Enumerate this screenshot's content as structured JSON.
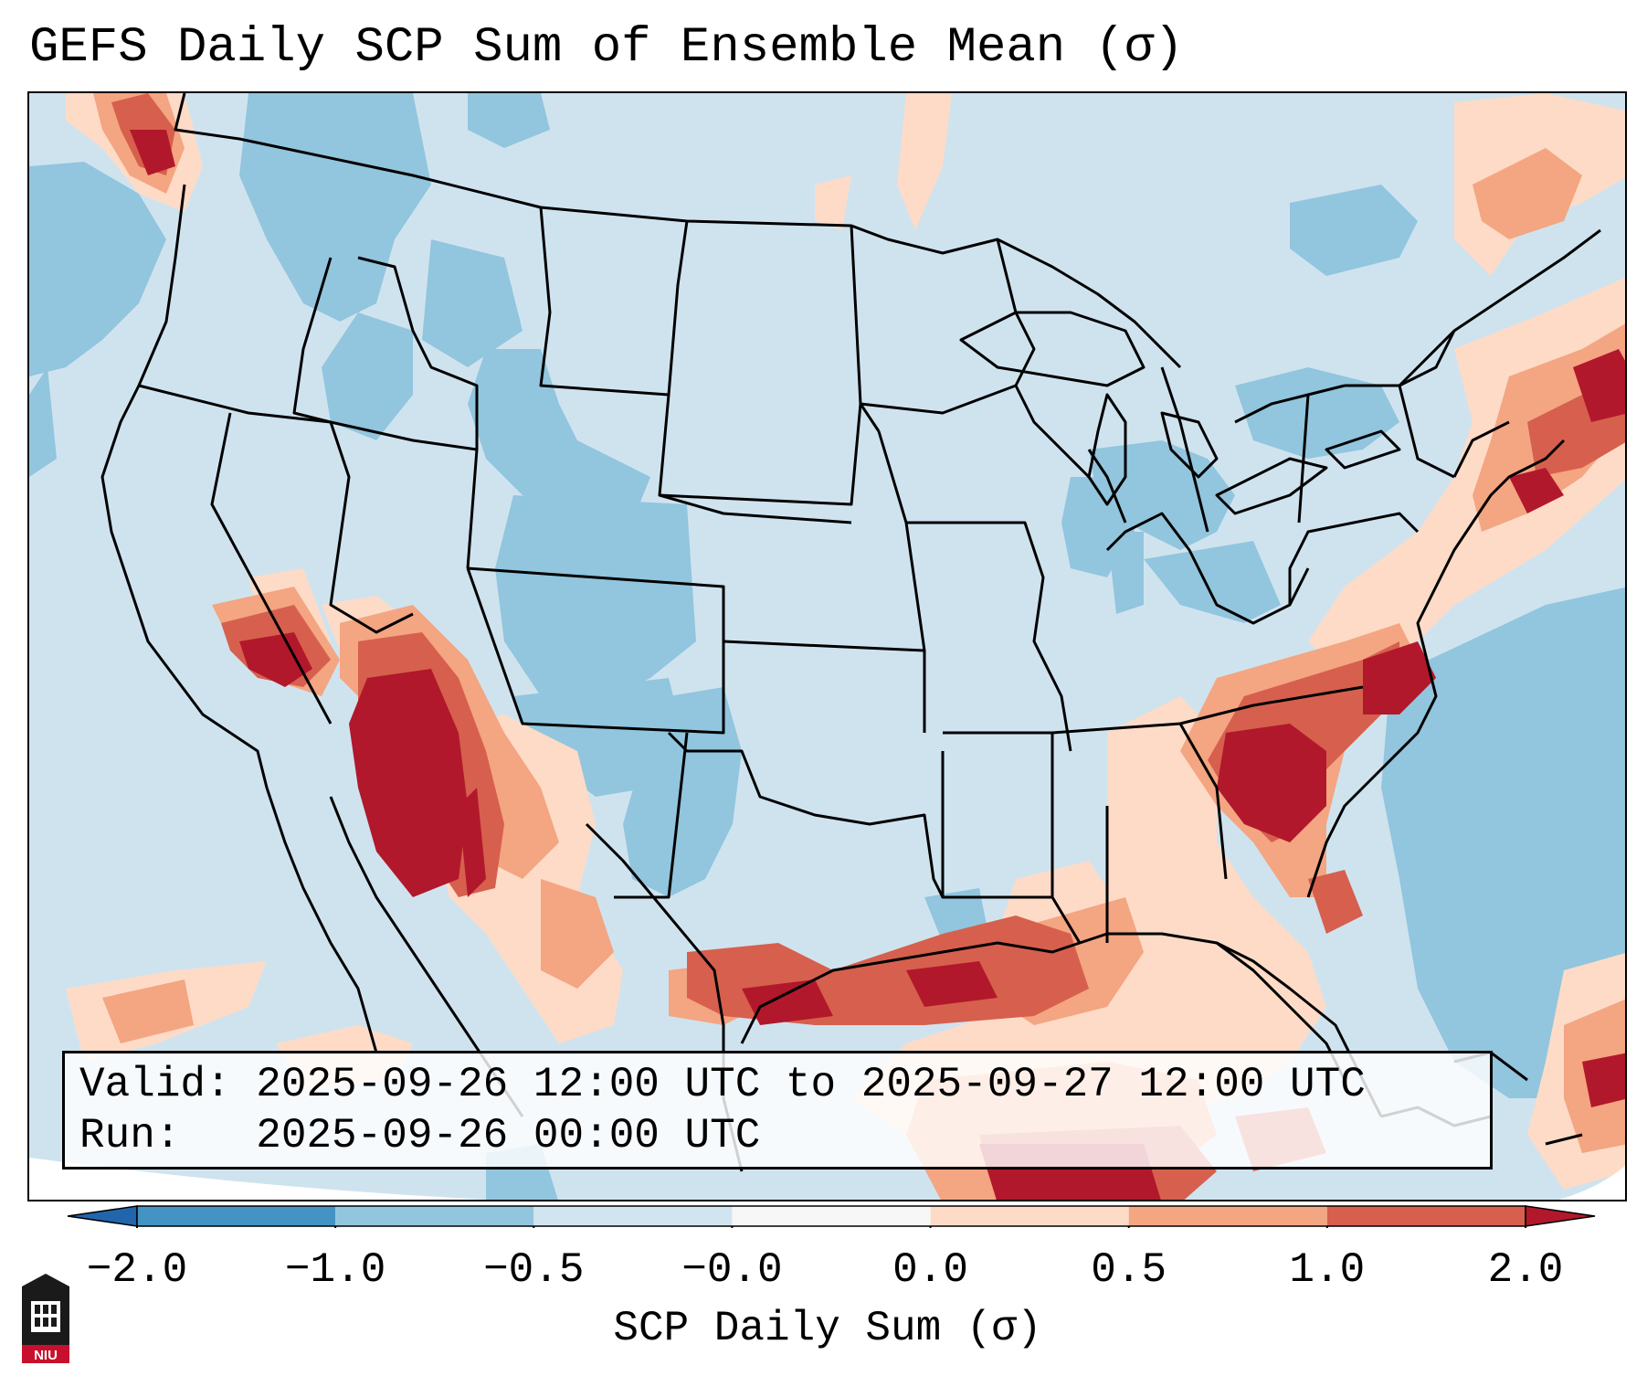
{
  "title": "GEFS Daily SCP Sum of Ensemble Mean (σ)",
  "valid_line": "Valid: 2025-09-26 12:00 UTC to 2025-09-27 12:00 UTC",
  "run_line": "Run:   2025-09-26 00:00 UTC",
  "colorbar": {
    "label": "SCP Daily Sum (σ)",
    "ticks": [
      "−2.0",
      "−1.0",
      "−0.5",
      "−0.0",
      "0.0",
      "0.5",
      "1.0",
      "2.0"
    ],
    "bins": [
      {
        "from": -2.0,
        "to": -1.0,
        "color": "#4393c3"
      },
      {
        "from": -1.0,
        "to": -0.5,
        "color": "#92c5de"
      },
      {
        "from": -0.5,
        "to": 0.0,
        "color": "#d1e5f0"
      },
      {
        "from": 0.0,
        "to": 0.0,
        "color": "#f7f7f7"
      },
      {
        "from": 0.0,
        "to": 0.5,
        "color": "#fddbc7"
      },
      {
        "from": 0.5,
        "to": 1.0,
        "color": "#f4a582"
      },
      {
        "from": 1.0,
        "to": 2.0,
        "color": "#d6604d"
      },
      {
        "from": 2.0,
        "to": 3.0,
        "color": "#b2182b"
      }
    ],
    "extend_low_color": "#2166ac",
    "extend_high_color": "#b2182b"
  },
  "logo_text": "NIU",
  "colors": {
    "background": "#cfe3ef",
    "neg_moderate": "#92c5de",
    "pos_light": "#fddbc7",
    "pos_moderate": "#f4a582",
    "pos_strong": "#d6604d",
    "pos_extreme": "#b2182b",
    "logo_red": "#c8102e"
  }
}
